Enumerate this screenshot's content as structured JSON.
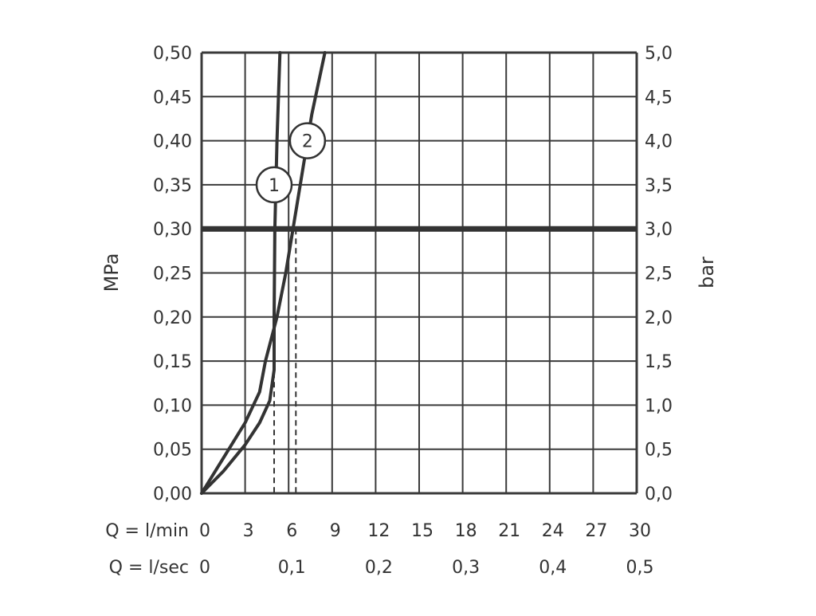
{
  "chart_data": {
    "type": "line",
    "title": "",
    "left_axis": {
      "label": "MPa",
      "ylim": [
        0,
        0.5
      ],
      "ticks": [
        "0,00",
        "0,05",
        "0,10",
        "0,15",
        "0,20",
        "0,25",
        "0,30",
        "0,35",
        "0,40",
        "0,45",
        "0,50"
      ]
    },
    "right_axis": {
      "label": "bar",
      "ylim": [
        0,
        5
      ],
      "ticks": [
        "0,0",
        "0,5",
        "1,0",
        "1,5",
        "2,0",
        "2,5",
        "3,0",
        "3,5",
        "4,0",
        "4,5",
        "5,0"
      ]
    },
    "x_axis": {
      "xlim": [
        0,
        30
      ],
      "rows": [
        {
          "label": "Q = l/min",
          "ticks": [
            {
              "x": 0,
              "text": "0"
            },
            {
              "x": 3,
              "text": "3"
            },
            {
              "x": 6,
              "text": "6"
            },
            {
              "x": 9,
              "text": "9"
            },
            {
              "x": 12,
              "text": "12"
            },
            {
              "x": 15,
              "text": "15"
            },
            {
              "x": 18,
              "text": "18"
            },
            {
              "x": 21,
              "text": "21"
            },
            {
              "x": 24,
              "text": "24"
            },
            {
              "x": 27,
              "text": "27"
            },
            {
              "x": 30,
              "text": "30"
            }
          ]
        },
        {
          "label": "Q = l/sec",
          "ticks": [
            {
              "x": 0,
              "text": "0"
            },
            {
              "x": 6,
              "text": "0,1"
            },
            {
              "x": 12,
              "text": "0,2"
            },
            {
              "x": 18,
              "text": "0,3"
            },
            {
              "x": 24,
              "text": "0,4"
            },
            {
              "x": 30,
              "text": "0,5"
            }
          ]
        }
      ]
    },
    "grid": true,
    "reference_line": {
      "y": 0.3,
      "style": "thick"
    },
    "series": [
      {
        "marker_label": "1",
        "marker_at": {
          "x": 5.0,
          "y": 0.35
        },
        "points": [
          {
            "x": 0,
            "y": 0
          },
          {
            "x": 1.5,
            "y": 0.025
          },
          {
            "x": 3.0,
            "y": 0.055
          },
          {
            "x": 4.0,
            "y": 0.08
          },
          {
            "x": 4.7,
            "y": 0.105
          },
          {
            "x": 5.0,
            "y": 0.14
          },
          {
            "x": 5.0,
            "y": 0.2
          },
          {
            "x": 5.05,
            "y": 0.3
          },
          {
            "x": 5.2,
            "y": 0.4
          },
          {
            "x": 5.4,
            "y": 0.5
          }
        ],
        "dropline_x": 5.0
      },
      {
        "marker_label": "2",
        "marker_at": {
          "x": 7.3,
          "y": 0.4
        },
        "points": [
          {
            "x": 0,
            "y": 0
          },
          {
            "x": 1.5,
            "y": 0.04
          },
          {
            "x": 3.0,
            "y": 0.08
          },
          {
            "x": 4.0,
            "y": 0.115
          },
          {
            "x": 4.4,
            "y": 0.15
          },
          {
            "x": 5.2,
            "y": 0.2
          },
          {
            "x": 5.8,
            "y": 0.25
          },
          {
            "x": 6.3,
            "y": 0.3
          },
          {
            "x": 7.0,
            "y": 0.37
          },
          {
            "x": 7.6,
            "y": 0.43
          },
          {
            "x": 8.5,
            "y": 0.5
          }
        ],
        "dropline_x": 6.5
      }
    ],
    "colors": {
      "ink": "#333333",
      "grid": "#3a3a3a",
      "background": "#ffffff"
    }
  }
}
